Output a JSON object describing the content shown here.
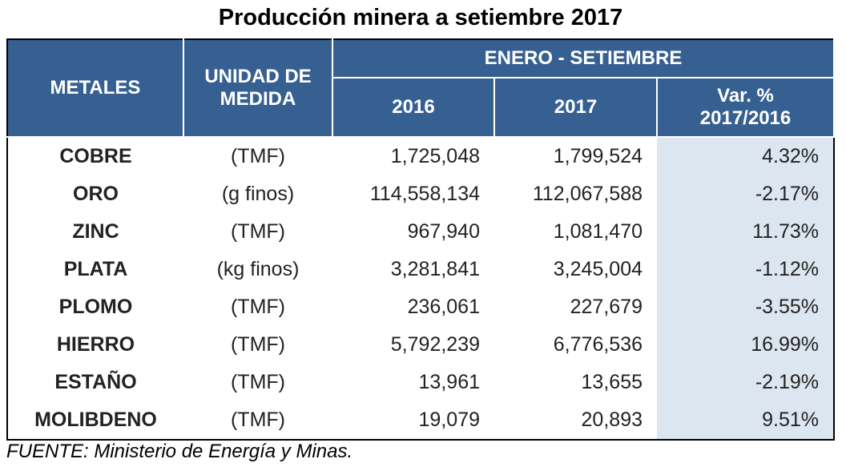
{
  "title": "Producción minera a setiembre 2017",
  "headers": {
    "metales": "METALES",
    "unidad": "UNIDAD DE MEDIDA",
    "periodo": "ENERO - SETIEMBRE",
    "y2016": "2016",
    "y2017": "2017",
    "var": "Var. % 2017/2016"
  },
  "rows": [
    {
      "metal": "COBRE",
      "unidad": "(TMF)",
      "v2016": "1,725,048",
      "v2017": "1,799,524",
      "var": "4.32%"
    },
    {
      "metal": "ORO",
      "unidad": "(g finos)",
      "v2016": "114,558,134",
      "v2017": "112,067,588",
      "var": "-2.17%"
    },
    {
      "metal": "ZINC",
      "unidad": "(TMF)",
      "v2016": "967,940",
      "v2017": "1,081,470",
      "var": "11.73%"
    },
    {
      "metal": "PLATA",
      "unidad": "(kg finos)",
      "v2016": "3,281,841",
      "v2017": "3,245,004",
      "var": "-1.12%"
    },
    {
      "metal": "PLOMO",
      "unidad": "(TMF)",
      "v2016": "236,061",
      "v2017": "227,679",
      "var": "-3.55%"
    },
    {
      "metal": "HIERRO",
      "unidad": "(TMF)",
      "v2016": "5,792,239",
      "v2017": "6,776,536",
      "var": "16.99%"
    },
    {
      "metal": "ESTAÑO",
      "unidad": "(TMF)",
      "v2016": "13,961",
      "v2017": "13,655",
      "var": "-2.19%"
    },
    {
      "metal": "MOLIBDENO",
      "unidad": "(TMF)",
      "v2016": "19,079",
      "v2017": "20,893",
      "var": "9.51%"
    }
  ],
  "source": "FUENTE: Ministerio de Energía y Minas."
}
